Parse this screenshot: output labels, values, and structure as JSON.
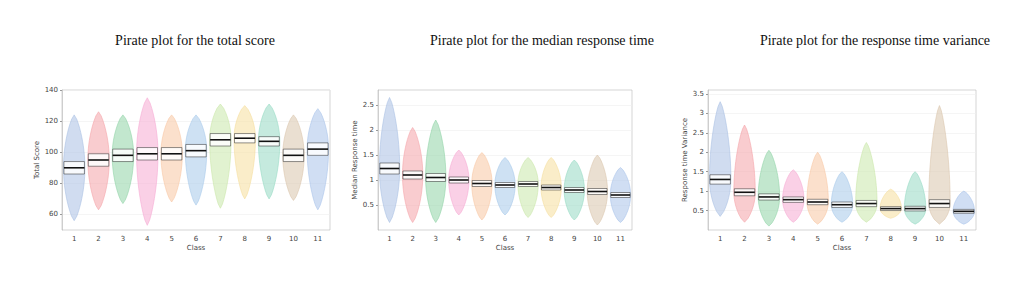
{
  "chart_data": [
    {
      "type": "pirate",
      "title": "Pirate plot for the total score",
      "x_label": "Class",
      "y_label": "Total Score",
      "categories": [
        "1",
        "2",
        "3",
        "4",
        "5",
        "6",
        "7",
        "8",
        "9",
        "10",
        "11"
      ],
      "colors": [
        "#a9bfe3",
        "#f4a3a8",
        "#8fd3a6",
        "#f6a9d2",
        "#f8c7a3",
        "#a6c8ea",
        "#c9e7a9",
        "#f5de9c",
        "#95d9c3",
        "#d9c4ab",
        "#a9c2ea"
      ],
      "values": [
        90,
        95,
        98,
        99,
        99,
        101,
        108,
        109,
        107,
        98,
        102
      ],
      "min": [
        56,
        63,
        67,
        53,
        68,
        66,
        64,
        70,
        70,
        69,
        63
      ],
      "max": [
        124,
        126,
        124,
        135,
        124,
        124,
        131,
        130,
        131,
        124,
        128
      ],
      "hdi_lower": [
        86,
        91,
        94,
        95,
        95,
        97,
        104,
        106,
        104,
        94,
        98
      ],
      "hdi_upper": [
        94,
        99,
        102,
        103,
        103,
        105,
        112,
        112,
        110,
        102,
        106
      ],
      "ylim": [
        50,
        140
      ],
      "yticks": [
        60,
        80,
        100,
        120,
        140
      ],
      "grid": true
    },
    {
      "type": "pirate",
      "title": "Pirate plot for the median response time",
      "x_label": "Class",
      "y_label": "Median Response time",
      "categories": [
        "1",
        "2",
        "3",
        "4",
        "5",
        "6",
        "7",
        "8",
        "9",
        "10",
        "11"
      ],
      "colors": [
        "#a9bfe3",
        "#f4a3a8",
        "#8fd3a6",
        "#f6a9d2",
        "#f8c7a3",
        "#a6c8ea",
        "#c9e7a9",
        "#f5de9c",
        "#95d9c3",
        "#d9c4ab",
        "#a9c2ea"
      ],
      "values": [
        1.23,
        1.1,
        1.05,
        1.0,
        0.93,
        0.9,
        0.92,
        0.85,
        0.8,
        0.77,
        0.7
      ],
      "min": [
        0.15,
        0.15,
        0.15,
        0.3,
        0.2,
        0.3,
        0.25,
        0.25,
        0.2,
        0.1,
        0.15
      ],
      "max": [
        2.65,
        2.05,
        2.2,
        1.6,
        1.55,
        1.45,
        1.45,
        1.45,
        1.4,
        1.5,
        1.25
      ],
      "hdi_lower": [
        1.12,
        1.02,
        0.97,
        0.94,
        0.87,
        0.85,
        0.87,
        0.8,
        0.75,
        0.71,
        0.65
      ],
      "hdi_upper": [
        1.34,
        1.18,
        1.13,
        1.06,
        0.99,
        0.95,
        0.97,
        0.9,
        0.85,
        0.83,
        0.75
      ],
      "ylim": [
        0,
        2.8
      ],
      "yticks": [
        0.5,
        1,
        1.5,
        2,
        2.5
      ],
      "grid": true
    },
    {
      "type": "pirate",
      "title": "Pirate plot for the response time variance",
      "x_label": "Class",
      "y_label": "Response time Variance",
      "categories": [
        "1",
        "2",
        "3",
        "4",
        "5",
        "6",
        "7",
        "8",
        "9",
        "10",
        "11"
      ],
      "colors": [
        "#a9bfe3",
        "#f4a3a8",
        "#8fd3a6",
        "#f6a9d2",
        "#f8c7a3",
        "#a6c8ea",
        "#c9e7a9",
        "#f5de9c",
        "#95d9c3",
        "#d9c4ab",
        "#a9c2ea"
      ],
      "values": [
        1.3,
        0.97,
        0.85,
        0.78,
        0.72,
        0.65,
        0.68,
        0.55,
        0.55,
        0.68,
        0.48
      ],
      "min": [
        0.35,
        0.2,
        0.1,
        0.2,
        0.15,
        0.2,
        0.2,
        0.3,
        0.15,
        0.15,
        0.15
      ],
      "max": [
        3.3,
        2.7,
        2.05,
        1.55,
        2.0,
        1.5,
        2.25,
        1.05,
        1.5,
        3.2,
        1.0
      ],
      "hdi_lower": [
        1.18,
        0.88,
        0.77,
        0.71,
        0.65,
        0.58,
        0.6,
        0.5,
        0.49,
        0.58,
        0.43
      ],
      "hdi_upper": [
        1.42,
        1.06,
        0.93,
        0.85,
        0.79,
        0.72,
        0.76,
        0.6,
        0.61,
        0.78,
        0.53
      ],
      "ylim": [
        0,
        3.6
      ],
      "yticks": [
        0.5,
        1,
        1.5,
        2,
        2.5,
        3,
        3.5
      ],
      "grid": true
    }
  ]
}
